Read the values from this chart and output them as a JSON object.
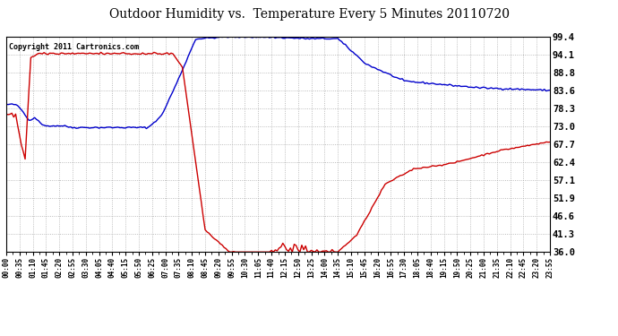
{
  "title": "Outdoor Humidity vs.  Temperature Every 5 Minutes 20110720",
  "copyright_text": "Copyright 2011 Cartronics.com",
  "background_color": "#ffffff",
  "plot_bg_color": "#ffffff",
  "grid_color": "#aaaaaa",
  "grid_style": ":",
  "line_color_humidity": "#0000cc",
  "line_color_temp": "#cc0000",
  "ymin": 36.0,
  "ymax": 99.4,
  "yticks": [
    99.4,
    94.1,
    88.8,
    83.6,
    78.3,
    73.0,
    67.7,
    62.4,
    57.1,
    51.9,
    46.6,
    41.3,
    36.0
  ],
  "n_points": 288,
  "figwidth": 6.9,
  "figheight": 3.75,
  "dpi": 100
}
